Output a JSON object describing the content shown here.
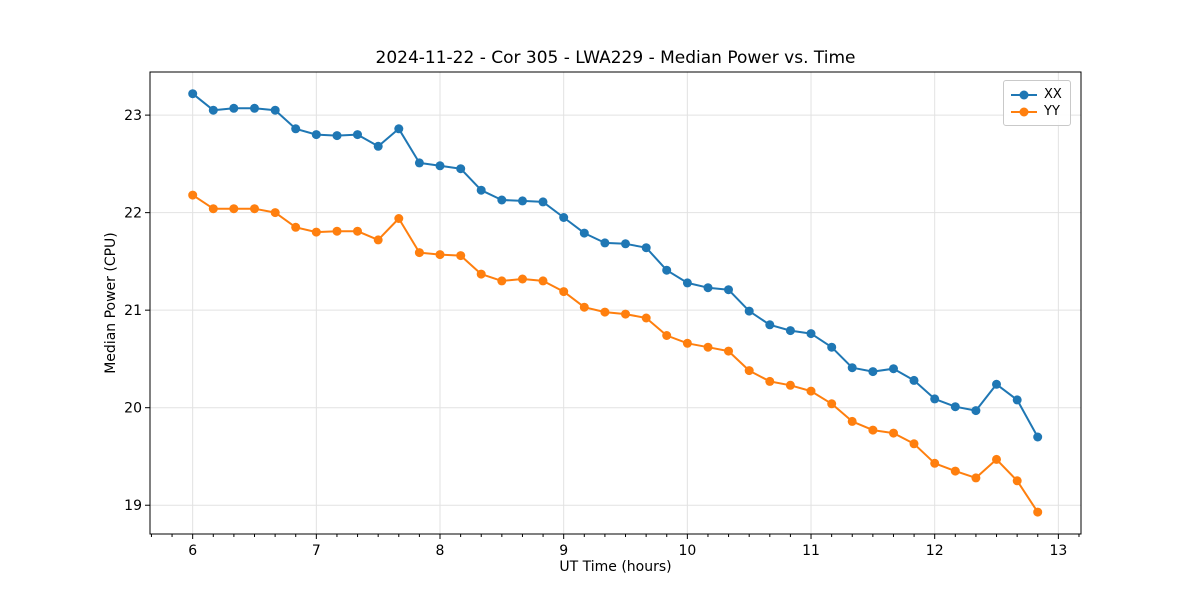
{
  "chart_data": {
    "type": "line",
    "title": "2024-11-22 - Cor 305 - LWA229 - Median Power vs. Time",
    "xlabel": "UT Time (hours)",
    "ylabel": "Median Power (CPU)",
    "xlim": [
      5.655,
      13.183
    ],
    "ylim": [
      18.705,
      23.442
    ],
    "xticks": [
      6,
      7,
      8,
      9,
      10,
      11,
      12,
      13
    ],
    "yticks": [
      19,
      20,
      21,
      22,
      23
    ],
    "x_minor_tick_step": 0.16667,
    "grid": true,
    "grid_color": "#e2e2e2",
    "frame_color": "#000000",
    "legend_position": "upper right",
    "x": [
      6.0,
      6.167,
      6.333,
      6.5,
      6.667,
      6.833,
      7.0,
      7.167,
      7.333,
      7.5,
      7.667,
      7.833,
      8.0,
      8.167,
      8.333,
      8.5,
      8.667,
      8.833,
      9.0,
      9.167,
      9.333,
      9.5,
      9.667,
      9.833,
      10.0,
      10.167,
      10.333,
      10.5,
      10.667,
      10.833,
      11.0,
      11.167,
      11.333,
      11.5,
      11.667,
      11.833,
      12.0,
      12.167,
      12.333,
      12.5,
      12.667,
      12.833
    ],
    "series": [
      {
        "name": "XX",
        "color": "#1f77b4",
        "values": [
          23.22,
          23.05,
          23.07,
          23.07,
          23.05,
          22.86,
          22.8,
          22.79,
          22.8,
          22.68,
          22.86,
          22.51,
          22.48,
          22.45,
          22.23,
          22.13,
          22.12,
          22.11,
          21.95,
          21.79,
          21.69,
          21.68,
          21.64,
          21.41,
          21.28,
          21.23,
          21.21,
          20.99,
          20.85,
          20.79,
          20.76,
          20.62,
          20.41,
          20.37,
          20.4,
          20.28,
          20.09,
          20.01,
          19.97,
          20.24,
          20.08,
          19.7
        ]
      },
      {
        "name": "YY",
        "color": "#ff7f0e",
        "values": [
          22.18,
          22.04,
          22.04,
          22.04,
          22.0,
          21.85,
          21.8,
          21.81,
          21.81,
          21.72,
          21.94,
          21.59,
          21.57,
          21.56,
          21.37,
          21.3,
          21.32,
          21.3,
          21.19,
          21.03,
          20.98,
          20.96,
          20.92,
          20.74,
          20.66,
          20.62,
          20.58,
          20.38,
          20.27,
          20.23,
          20.17,
          20.04,
          19.86,
          19.77,
          19.74,
          19.63,
          19.43,
          19.35,
          19.28,
          19.47,
          19.25,
          18.93
        ]
      }
    ]
  }
}
